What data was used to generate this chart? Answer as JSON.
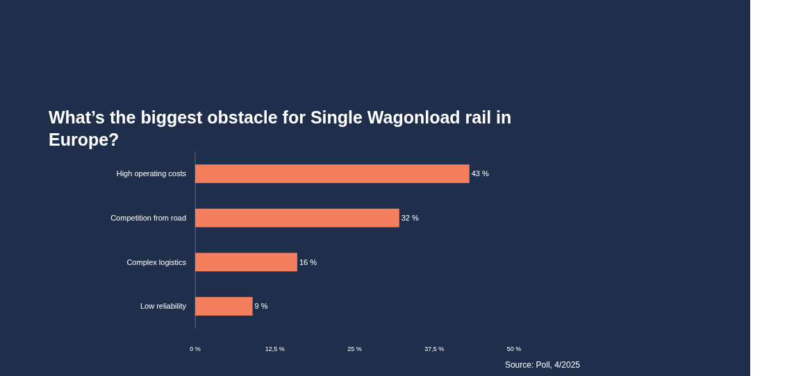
{
  "chart_data": {
    "type": "bar",
    "orientation": "horizontal",
    "title": "What’s the biggest obstacle for Single Wagonload rail in Europe?",
    "categories": [
      "High operating costs",
      "Competition from road",
      "Complex logistics",
      "Low reliability"
    ],
    "values": [
      43,
      32,
      16,
      9
    ],
    "color": "#f47f5f",
    "value_labels": [
      "43 %",
      "32 %",
      "16 %",
      "9 %"
    ],
    "xlim": [
      0,
      50
    ],
    "xticks": [
      {
        "value": 0,
        "label": "0 %"
      },
      {
        "value": 12.5,
        "label": "12,5 %"
      },
      {
        "value": 25,
        "label": "25 %"
      },
      {
        "value": 37.5,
        "label": "37,5 %"
      },
      {
        "value": 50,
        "label": "50 %"
      }
    ],
    "annotations": [
      "Source: Poll, 4/2025"
    ]
  }
}
